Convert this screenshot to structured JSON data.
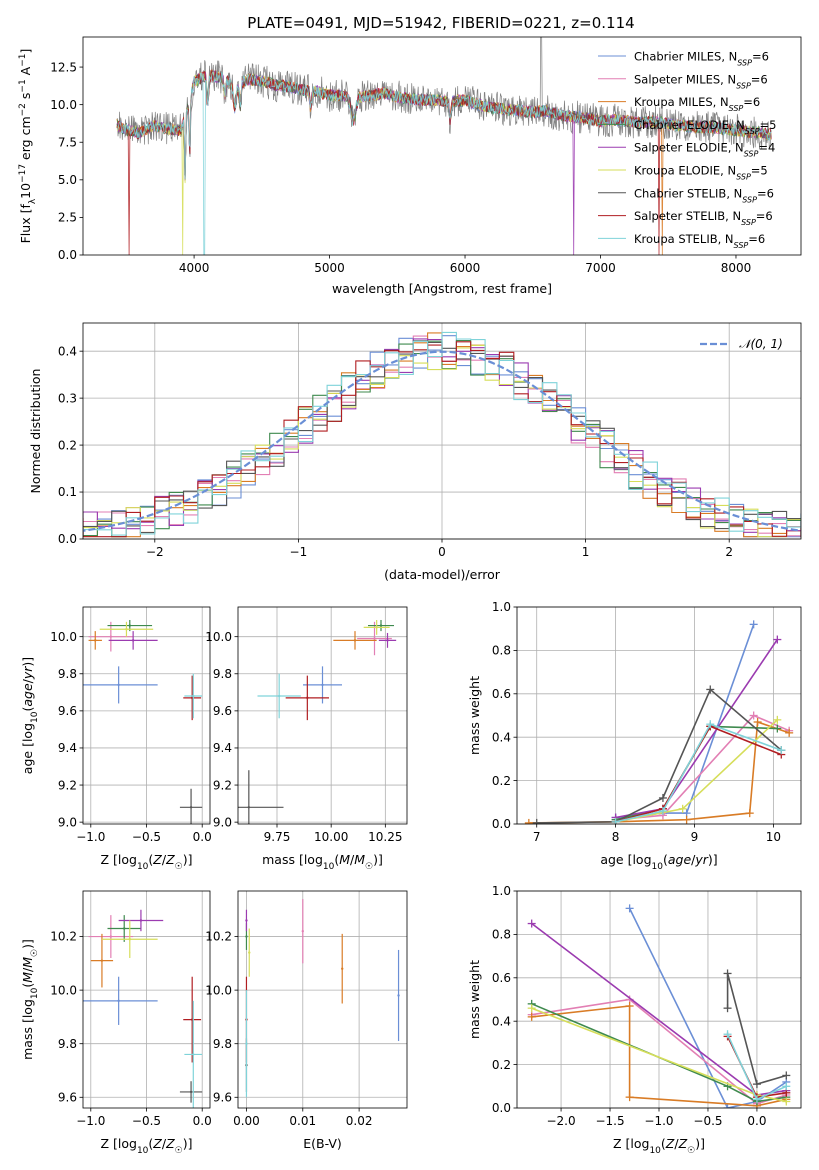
{
  "figure": {
    "title": "PLATE=0491, MJD=51942, FIBERID=0221, z=0.114"
  },
  "colors": {
    "Chabrier MILES": "#6b8fd6",
    "Salpeter MILES": "#e27fb4",
    "Kroupa MILES": "#d97c26",
    "Chabrier ELODIE": "#3f8a4e",
    "Salpeter ELODIE": "#9b3bb0",
    "Kroupa ELODIE": "#d6de5a",
    "Chabrier STELIB": "#555555",
    "Salpeter STELIB": "#b01e22",
    "Kroupa STELIB": "#7fd3d9",
    "normal": "#6a8fd6",
    "grid": "#b0b0b0"
  },
  "chart_data": [
    {
      "id": "spectrum",
      "type": "line",
      "title": "PLATE=0491, MJD=51942, FIBERID=0221, z=0.114",
      "xlabel": "wavelength [Angstrom, rest frame]",
      "ylabel": "Flux [f_λ 10^-17 erg cm^-2 s^-1 A^-1]",
      "xlim": [
        3180,
        8480
      ],
      "ylim": [
        0,
        14.5
      ],
      "xticks": [
        4000,
        5000,
        6000,
        7000,
        8000
      ],
      "xtick_labels": [
        "4000",
        "5000",
        "6000",
        "7000",
        "8000"
      ],
      "yticks": [
        0,
        2.5,
        5,
        7.5,
        10,
        12.5
      ],
      "ytick_labels": [
        "0.0",
        "2.5",
        "5.0",
        "7.5",
        "10.0",
        "12.5"
      ],
      "grid": false,
      "legend_position": "top-right",
      "legend": [
        "Chabrier MILES, N_SSP=6",
        "Salpeter MILES, N_SSP=6",
        "Kroupa MILES, N_SSP=6",
        "Chabrier ELODIE, N_SSP=5",
        "Salpeter ELODIE, N_SSP=4",
        "Kroupa ELODIE, N_SSP=5",
        "Chabrier STELIB, N_SSP=6",
        "Salpeter STELIB, N_SSP=6",
        "Kroupa STELIB, N_SSP=6"
      ],
      "continuum_wavelength": [
        3420,
        3500,
        3600,
        3700,
        3800,
        3900,
        3950,
        4000,
        4100,
        4200,
        4300,
        4400,
        4500,
        4600,
        4700,
        4800,
        4900,
        5000,
        5100,
        5200,
        5300,
        5400,
        5500,
        5600,
        5700,
        5800,
        5900,
        6000,
        6100,
        6200,
        6300,
        6400,
        6500,
        6600,
        6700,
        6800,
        6900,
        7000,
        7100,
        7200,
        7300,
        7400,
        7500,
        7600,
        7700,
        7800,
        7900,
        8000,
        8100,
        8200,
        8250
      ],
      "continuum_flux": [
        8.7,
        8.3,
        8.1,
        8.6,
        8.4,
        8.3,
        9.6,
        11.5,
        12.0,
        11.8,
        11.2,
        11.7,
        11.6,
        11.3,
        11.2,
        11.0,
        10.9,
        10.6,
        10.6,
        10.5,
        10.6,
        10.8,
        10.5,
        10.4,
        10.3,
        10.3,
        10.2,
        10.3,
        10.0,
        9.8,
        9.7,
        9.6,
        9.5,
        9.6,
        9.3,
        9.2,
        9.1,
        8.9,
        9.0,
        8.9,
        8.8,
        8.9,
        8.7,
        8.6,
        8.5,
        8.5,
        8.4,
        8.3,
        8.2,
        8.1,
        8.0
      ]
    },
    {
      "id": "residuals",
      "type": "line",
      "xlabel": "(data-model)/error",
      "ylabel": "Normed distribution",
      "xlim": [
        -2.5,
        2.5
      ],
      "ylim": [
        0,
        0.46
      ],
      "xticks": [
        -2,
        -1,
        0,
        1,
        2
      ],
      "xtick_labels": [
        "−2",
        "−1",
        "0",
        "1",
        "2"
      ],
      "yticks": [
        0,
        0.1,
        0.2,
        0.3,
        0.4
      ],
      "ytick_labels": [
        "0.0",
        "0.1",
        "0.2",
        "0.3",
        "0.4"
      ],
      "grid": true,
      "legend_position": "top-right",
      "legend": [
        "𝒩(0, 1)"
      ],
      "bin_width": 0.1
    },
    {
      "id": "age-vs-Z",
      "type": "scatter",
      "xlabel": "Z [log10(Z/Z☉)]",
      "ylabel": "age [log10(age/yr)]",
      "xlim": [
        -1.07,
        0.07
      ],
      "ylim": [
        8.99,
        10.16
      ],
      "xticks": [
        -1.0,
        -0.5,
        0.0
      ],
      "xtick_labels": [
        "−1.0",
        "−0.5",
        "0.0"
      ],
      "yticks": [
        9.0,
        9.2,
        9.4,
        9.6,
        9.8,
        10.0
      ],
      "ytick_labels": [
        "9.0",
        "9.2",
        "9.4",
        "9.6",
        "9.8",
        "10.0"
      ],
      "grid": true,
      "points": [
        {
          "series": "Chabrier MILES",
          "x": -0.75,
          "xerr": 0.35,
          "y": 9.74,
          "yerr": 0.1
        },
        {
          "series": "Salpeter MILES",
          "x": -0.82,
          "xerr": 0.2,
          "y": 10.0,
          "yerr": 0.08
        },
        {
          "series": "Kroupa MILES",
          "x": -0.96,
          "xerr": 0.06,
          "y": 9.98,
          "yerr": 0.05
        },
        {
          "series": "Chabrier ELODIE",
          "x": -0.65,
          "xerr": 0.2,
          "y": 10.06,
          "yerr": 0.03
        },
        {
          "series": "Salpeter ELODIE",
          "x": -0.62,
          "xerr": 0.22,
          "y": 9.98,
          "yerr": 0.05
        },
        {
          "series": "Kroupa ELODIE",
          "x": -0.68,
          "xerr": 0.24,
          "y": 10.04,
          "yerr": 0.04
        },
        {
          "series": "Chabrier STELIB",
          "x": -0.1,
          "xerr": 0.1,
          "y": 9.08,
          "yerr": 0.1
        },
        {
          "series": "Salpeter STELIB",
          "x": -0.09,
          "xerr": 0.08,
          "y": 9.67,
          "yerr": 0.12
        },
        {
          "series": "Kroupa STELIB",
          "x": -0.08,
          "xerr": 0.08,
          "y": 9.68,
          "yerr": 0.12
        }
      ]
    },
    {
      "id": "age-vs-mass",
      "type": "scatter",
      "xlabel": "mass [log10(M/M☉)]",
      "ylabel": "",
      "xlim": [
        9.57,
        10.35
      ],
      "ylim": [
        8.99,
        10.16
      ],
      "xticks": [
        9.75,
        10.0,
        10.25
      ],
      "xtick_labels": [
        "9.75",
        "10.00",
        "10.25"
      ],
      "yticks": [
        9.0,
        9.2,
        9.4,
        9.6,
        9.8,
        10.0
      ],
      "ytick_labels": [
        "9.0",
        "9.2",
        "9.4",
        "9.6",
        "9.8",
        "10.0"
      ],
      "grid": true,
      "points": [
        {
          "series": "Chabrier MILES",
          "x": 9.96,
          "xerr": 0.09,
          "y": 9.74,
          "yerr": 0.1
        },
        {
          "series": "Salpeter MILES",
          "x": 10.2,
          "xerr": 0.08,
          "y": 9.99,
          "yerr": 0.09
        },
        {
          "series": "Kroupa MILES",
          "x": 10.11,
          "xerr": 0.1,
          "y": 9.98,
          "yerr": 0.05
        },
        {
          "series": "Chabrier ELODIE",
          "x": 10.23,
          "xerr": 0.06,
          "y": 10.06,
          "yerr": 0.03
        },
        {
          "series": "Salpeter ELODIE",
          "x": 10.26,
          "xerr": 0.04,
          "y": 9.98,
          "yerr": 0.04
        },
        {
          "series": "Kroupa ELODIE",
          "x": 10.21,
          "xerr": 0.06,
          "y": 10.05,
          "yerr": 0.04
        },
        {
          "series": "Chabrier STELIB",
          "x": 9.62,
          "xerr": 0.16,
          "y": 9.08,
          "yerr": 0.2
        },
        {
          "series": "Salpeter STELIB",
          "x": 9.89,
          "xerr": 0.1,
          "y": 9.67,
          "yerr": 0.12
        },
        {
          "series": "Kroupa STELIB",
          "x": 9.76,
          "xerr": 0.1,
          "y": 9.68,
          "yerr": 0.12
        }
      ]
    },
    {
      "id": "weight-vs-age",
      "type": "line",
      "xlabel": "age [log10(age/yr)]",
      "ylabel": "mass weight",
      "xlim": [
        6.75,
        10.35
      ],
      "ylim": [
        0,
        1.0
      ],
      "xticks": [
        7,
        8,
        9,
        10
      ],
      "xtick_labels": [
        "7",
        "8",
        "9",
        "10"
      ],
      "yticks": [
        0,
        0.2,
        0.4,
        0.6,
        0.8,
        1.0
      ],
      "ytick_labels": [
        "0.0",
        "0.2",
        "0.4",
        "0.6",
        "0.8",
        "1.0"
      ],
      "grid": true,
      "series": [
        {
          "name": "Chabrier MILES",
          "x": [
            8.0,
            8.6,
            8.9,
            9.75
          ],
          "y": [
            0.03,
            0.05,
            0.05,
            0.92
          ]
        },
        {
          "name": "Salpeter MILES",
          "x": [
            8.0,
            8.6,
            9.75,
            10.2
          ],
          "y": [
            0.02,
            0.04,
            0.5,
            0.43
          ]
        },
        {
          "name": "Kroupa MILES",
          "x": [
            6.9,
            8.0,
            8.9,
            9.7,
            9.8,
            10.2
          ],
          "y": [
            0.005,
            0.01,
            0.02,
            0.05,
            0.47,
            0.42
          ]
        },
        {
          "name": "Chabrier ELODIE",
          "x": [
            8.0,
            8.6,
            9.2,
            10.05
          ],
          "y": [
            0.02,
            0.07,
            0.45,
            0.44
          ]
        },
        {
          "name": "Salpeter ELODIE",
          "x": [
            8.0,
            8.6,
            10.05
          ],
          "y": [
            0.03,
            0.07,
            0.85
          ]
        },
        {
          "name": "Kroupa ELODIE",
          "x": [
            8.0,
            8.85,
            10.05
          ],
          "y": [
            0.01,
            0.07,
            0.48
          ]
        },
        {
          "name": "Chabrier STELIB",
          "x": [
            7.0,
            8.0,
            8.6,
            9.2,
            10.1
          ],
          "y": [
            0.005,
            0.01,
            0.12,
            0.62,
            0.34
          ]
        },
        {
          "name": "Salpeter STELIB",
          "x": [
            8.0,
            8.6,
            9.2,
            10.1
          ],
          "y": [
            0.01,
            0.07,
            0.45,
            0.32
          ]
        },
        {
          "name": "Kroupa STELIB",
          "x": [
            8.0,
            8.6,
            9.2,
            10.1
          ],
          "y": [
            0.01,
            0.06,
            0.46,
            0.34
          ]
        }
      ]
    },
    {
      "id": "mass-vs-Z",
      "type": "scatter",
      "xlabel": "Z [log10(Z/Z☉)]",
      "ylabel": "mass [log10(M/M☉)]",
      "xlim": [
        -1.07,
        0.07
      ],
      "ylim": [
        9.56,
        10.37
      ],
      "xticks": [
        -1.0,
        -0.5,
        0.0
      ],
      "xtick_labels": [
        "−1.0",
        "−0.5",
        "0.0"
      ],
      "yticks": [
        9.6,
        9.8,
        10.0,
        10.2
      ],
      "ytick_labels": [
        "9.6",
        "9.8",
        "10.0",
        "10.2"
      ],
      "grid": true,
      "points": [
        {
          "series": "Chabrier MILES",
          "x": -0.75,
          "xerr": 0.35,
          "y": 9.96,
          "yerr": 0.09
        },
        {
          "series": "Salpeter MILES",
          "x": -0.82,
          "xerr": 0.2,
          "y": 10.2,
          "yerr": 0.08
        },
        {
          "series": "Kroupa MILES",
          "x": -0.9,
          "xerr": 0.1,
          "y": 10.11,
          "yerr": 0.1
        },
        {
          "series": "Chabrier ELODIE",
          "x": -0.7,
          "xerr": 0.15,
          "y": 10.23,
          "yerr": 0.05
        },
        {
          "series": "Salpeter ELODIE",
          "x": -0.55,
          "xerr": 0.2,
          "y": 10.26,
          "yerr": 0.04
        },
        {
          "series": "Kroupa ELODIE",
          "x": -0.65,
          "xerr": 0.25,
          "y": 10.19,
          "yerr": 0.07
        },
        {
          "series": "Chabrier STELIB",
          "x": -0.1,
          "xerr": 0.1,
          "y": 9.62,
          "yerr": 0.04
        },
        {
          "series": "Salpeter STELIB",
          "x": -0.09,
          "xerr": 0.08,
          "y": 9.89,
          "yerr": 0.16
        },
        {
          "series": "Kroupa STELIB",
          "x": -0.08,
          "xerr": 0.08,
          "y": 9.76,
          "yerr": 0.2
        }
      ]
    },
    {
      "id": "mass-vs-ebv",
      "type": "scatter",
      "xlabel": "E(B-V)",
      "ylabel": "",
      "xlim": [
        -0.0015,
        0.0285
      ],
      "ylim": [
        9.56,
        10.37
      ],
      "xticks": [
        0.0,
        0.01,
        0.02
      ],
      "xtick_labels": [
        "0.00",
        "0.01",
        "0.02"
      ],
      "yticks": [
        9.6,
        9.8,
        10.0,
        10.2
      ],
      "ytick_labels": [
        "9.6",
        "9.8",
        "10.0",
        "10.2"
      ],
      "grid": true,
      "points": [
        {
          "series": "Chabrier MILES",
          "x": 0.027,
          "y": 9.98,
          "yerr": 0.17
        },
        {
          "series": "Salpeter MILES",
          "x": 0.01,
          "y": 10.22,
          "yerr": 0.12
        },
        {
          "series": "Kroupa MILES",
          "x": 0.017,
          "y": 10.08,
          "yerr": 0.13
        },
        {
          "series": "Chabrier ELODIE",
          "x": 0.0,
          "y": 10.2,
          "yerr": 0.05
        },
        {
          "series": "Salpeter ELODIE",
          "x": 0.0,
          "y": 10.26,
          "yerr": 0.04
        },
        {
          "series": "Kroupa ELODIE",
          "x": 0.0005,
          "y": 10.14,
          "yerr": 0.09
        },
        {
          "series": "Chabrier STELIB",
          "x": 0.0,
          "y": 9.72,
          "yerr": 0.1
        },
        {
          "series": "Salpeter STELIB",
          "x": 0.0,
          "y": 9.89,
          "yerr": 0.16
        },
        {
          "series": "Kroupa STELIB",
          "x": 0.0,
          "y": 9.8,
          "yerr": 0.2
        }
      ]
    },
    {
      "id": "weight-vs-Z",
      "type": "line",
      "xlabel": "Z [log10(Z/Z☉)]",
      "ylabel": "mass weight",
      "xlim": [
        -2.45,
        0.45
      ],
      "ylim": [
        0,
        1.0
      ],
      "xticks": [
        -2.0,
        -1.5,
        -1.0,
        -0.5,
        0.0
      ],
      "xtick_labels": [
        "−2.0",
        "−1.5",
        "−1.0",
        "−0.5",
        "0.0"
      ],
      "yticks": [
        0,
        0.2,
        0.4,
        0.6,
        0.8,
        1.0
      ],
      "ytick_labels": [
        "0.0",
        "0.2",
        "0.4",
        "0.6",
        "0.8",
        "1.0"
      ],
      "grid": true,
      "series": [
        {
          "name": "Chabrier MILES",
          "x": [
            -1.3,
            -0.3,
            0.0,
            0.3
          ],
          "y": [
            0.92,
            0.0,
            0.03,
            0.12
          ]
        },
        {
          "name": "Salpeter MILES",
          "x": [
            -2.3,
            -1.3,
            0.0,
            0.3
          ],
          "y": [
            0.43,
            0.5,
            0.02,
            0.06
          ]
        },
        {
          "name": "Kroupa MILES",
          "x": [
            -2.3,
            -1.3,
            -1.3,
            0.0,
            0.3
          ],
          "y": [
            0.42,
            0.47,
            0.05,
            0.01,
            0.04
          ]
        },
        {
          "name": "Chabrier ELODIE",
          "x": [
            -2.3,
            -0.3,
            0.0,
            0.3
          ],
          "y": [
            0.48,
            0.1,
            0.03,
            0.05
          ]
        },
        {
          "name": "Salpeter ELODIE",
          "x": [
            -2.3,
            0.0,
            0.3
          ],
          "y": [
            0.85,
            0.06,
            0.08
          ]
        },
        {
          "name": "Kroupa ELODIE",
          "x": [
            -2.3,
            0.0,
            0.3
          ],
          "y": [
            0.46,
            0.06,
            0.03
          ]
        },
        {
          "name": "Chabrier STELIB",
          "x": [
            -0.3,
            -0.3,
            0.0,
            0.3
          ],
          "y": [
            0.46,
            0.62,
            0.11,
            0.15
          ]
        },
        {
          "name": "Salpeter STELIB",
          "x": [
            -0.3,
            0.0,
            0.3
          ],
          "y": [
            0.33,
            0.05,
            0.07
          ]
        },
        {
          "name": "Kroupa STELIB",
          "x": [
            -0.3,
            0.0,
            0.3
          ],
          "y": [
            0.34,
            0.04,
            0.1
          ]
        }
      ]
    }
  ]
}
